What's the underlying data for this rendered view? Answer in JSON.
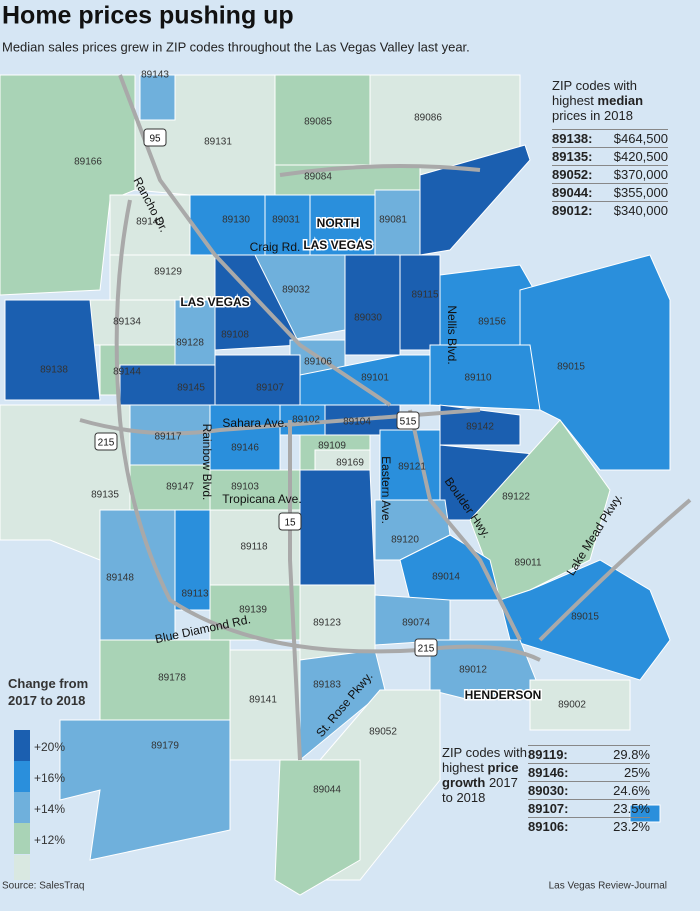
{
  "header": {
    "title": "Home prices pushing up",
    "subtitle": "Median sales prices grew in ZIP codes throughout the Las Vegas Valley last year."
  },
  "zip_labels": [
    "89143",
    "89131",
    "89085",
    "89086",
    "89166",
    "89084",
    "89149",
    "89130",
    "89031",
    "89081",
    "89129",
    "89032",
    "89134",
    "89108",
    "89030",
    "89115",
    "89156",
    "89128",
    "89106",
    "89138",
    "89144",
    "89145",
    "89107",
    "89101",
    "89110",
    "89015",
    "89117",
    "89102",
    "89104",
    "89142",
    "89146",
    "89109",
    "89169",
    "89121",
    "89135",
    "89147",
    "89103",
    "89122",
    "89118",
    "89120",
    "89011",
    "89148",
    "89014",
    "89113",
    "89139",
    "89123",
    "89074",
    "89015",
    "89012",
    "89178",
    "89183",
    "89141",
    "89002",
    "89052",
    "89179",
    "89044"
  ],
  "road_labels": [
    "Rancho Dr.",
    "Craig Rd.",
    "Nellis Blvd.",
    "Sahara Ave.",
    "Rainbow Blvd.",
    "Tropicana Ave.",
    "Eastern Ave.",
    "Boulder Hwy.",
    "Lake Mead Pkwy.",
    "Blue Diamond Rd.",
    "St. Rose Pkwy."
  ],
  "highway_shields": [
    "95",
    "515",
    "215",
    "15",
    "215"
  ],
  "city_labels": [
    "NORTH",
    "LAS VEGAS",
    "LAS VEGAS",
    "HENDERSON"
  ],
  "top_prices": {
    "intro_before": "ZIP codes with highest",
    "intro_bold": "median",
    "intro_after": "prices in 2018",
    "rows": [
      {
        "zip": "89138:",
        "price": "$464,500"
      },
      {
        "zip": "89135:",
        "price": "$420,500"
      },
      {
        "zip": "89052:",
        "price": "$370,000"
      },
      {
        "zip": "89044:",
        "price": "$355,000"
      },
      {
        "zip": "89012:",
        "price": "$340,000"
      }
    ]
  },
  "top_growth": {
    "intro_before": "ZIP codes with highest",
    "intro_bold": "price growth",
    "intro_after": "2017 to 2018",
    "rows": [
      {
        "zip": "89119:",
        "growth": "29.8%"
      },
      {
        "zip": "89146:",
        "growth": "25%"
      },
      {
        "zip": "89030:",
        "growth": "24.6%"
      },
      {
        "zip": "89107:",
        "growth": "23.5%"
      },
      {
        "zip": "89106:",
        "growth": "23.2%"
      }
    ]
  },
  "legend": {
    "title": "Change from 2017 to 2018",
    "items": [
      {
        "label": "+20%",
        "color": "#1b5fb0"
      },
      {
        "label": "+16%",
        "color": "#2a8fdc"
      },
      {
        "label": "+14%",
        "color": "#6fb0dc"
      },
      {
        "label": "+12%",
        "color": "#a9d3b6"
      }
    ]
  },
  "footer": {
    "source": "Source: SalesTraq",
    "credit": "Las Vegas Review-Journal"
  }
}
